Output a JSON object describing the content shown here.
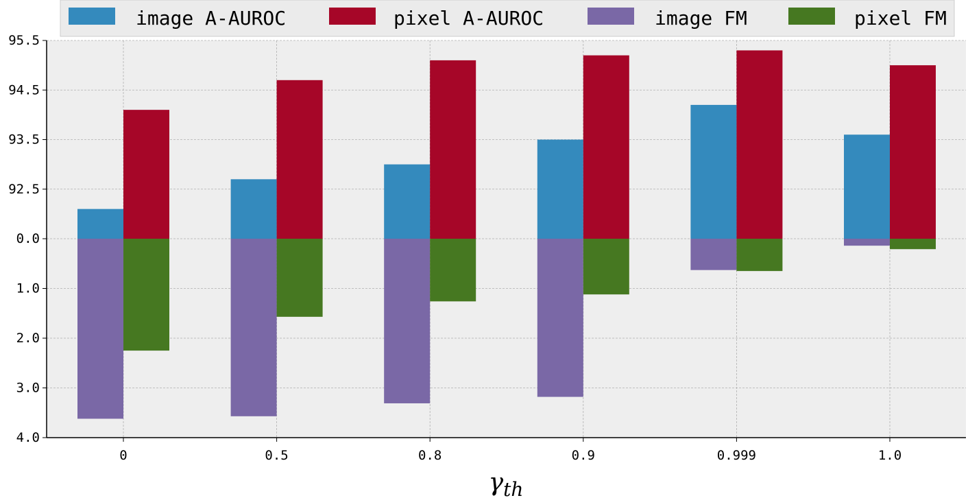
{
  "chart_data": {
    "type": "bar",
    "xlabel": "γth",
    "categories": [
      "0",
      "0.5",
      "0.8",
      "0.9",
      "0.999",
      "1.0"
    ],
    "upper_axis": {
      "ticks": [
        "95.5",
        "94.5",
        "93.5",
        "92.5"
      ],
      "range": [
        91.5,
        95.5
      ]
    },
    "lower_axis": {
      "ticks": [
        "0.0",
        "1.0",
        "2.0",
        "3.0",
        "4.0"
      ],
      "range": [
        0,
        4
      ]
    },
    "series": [
      {
        "name": "image A-AUROC",
        "values": [
          92.1,
          92.7,
          93.0,
          93.5,
          94.2,
          93.6
        ],
        "color": "#348abd",
        "panel": "upper"
      },
      {
        "name": "pixel A-AUROC",
        "values": [
          94.1,
          94.7,
          95.1,
          95.2,
          95.3,
          95.0
        ],
        "color": "#a60628",
        "panel": "upper"
      },
      {
        "name": "image FM",
        "values": [
          3.62,
          3.57,
          3.31,
          3.18,
          0.63,
          0.14
        ],
        "color": "#7a68a6",
        "panel": "lower"
      },
      {
        "name": "pixel FM",
        "values": [
          2.25,
          1.57,
          1.26,
          1.12,
          0.65,
          0.21
        ],
        "color": "#467821",
        "panel": "lower"
      }
    ],
    "grid": true,
    "legend": "top"
  }
}
